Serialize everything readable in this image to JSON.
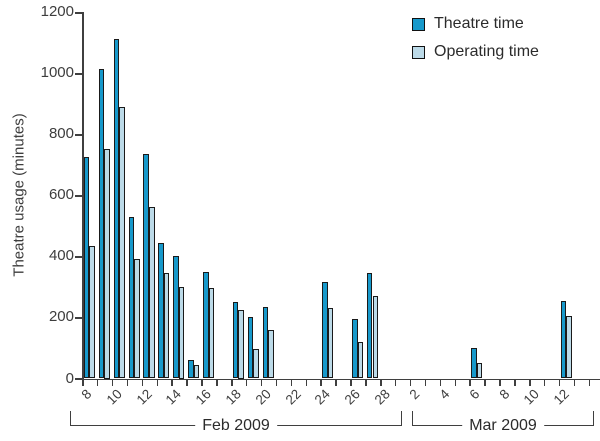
{
  "chart_data": {
    "type": "bar",
    "title": "",
    "ylabel": "Theatre usage (minutes)",
    "ylim": [
      0,
      1200
    ],
    "yticks": [
      0,
      200,
      400,
      600,
      800,
      1000,
      1200
    ],
    "grid": false,
    "legend_position": "top-right",
    "series_names": [
      "Theatre time",
      "Operating time"
    ],
    "colors": {
      "theatre_time": "#1799CB",
      "operating_time": "#BCDAE8",
      "axis": "#3F3F3F",
      "text": "#3D3D3D",
      "bar_border": "#1A1A1A"
    },
    "sections": [
      {
        "label": "Feb 2009",
        "first_day": 8,
        "last_day": 28,
        "tick_labels": [
          8,
          10,
          12,
          14,
          16,
          18,
          20,
          22,
          24,
          26,
          28
        ]
      },
      {
        "label": "Mar 2009",
        "first_day": 1,
        "last_day": 13,
        "tick_labels": [
          2,
          4,
          6,
          8,
          10,
          12
        ]
      }
    ],
    "data": [
      {
        "month": "Feb",
        "day": 8,
        "theatre_time": 725,
        "operating_time": 435
      },
      {
        "month": "Feb",
        "day": 9,
        "theatre_time": 1015,
        "operating_time": 750
      },
      {
        "month": "Feb",
        "day": 10,
        "theatre_time": 1110,
        "operating_time": 890
      },
      {
        "month": "Feb",
        "day": 11,
        "theatre_time": 530,
        "operating_time": 390
      },
      {
        "month": "Feb",
        "day": 12,
        "theatre_time": 735,
        "operating_time": 560
      },
      {
        "month": "Feb",
        "day": 13,
        "theatre_time": 445,
        "operating_time": 345
      },
      {
        "month": "Feb",
        "day": 14,
        "theatre_time": 400,
        "operating_time": 300
      },
      {
        "month": "Feb",
        "day": 15,
        "theatre_time": 60,
        "operating_time": 45
      },
      {
        "month": "Feb",
        "day": 16,
        "theatre_time": 350,
        "operating_time": 295
      },
      {
        "month": "Feb",
        "day": 18,
        "theatre_time": 250,
        "operating_time": 225
      },
      {
        "month": "Feb",
        "day": 19,
        "theatre_time": 200,
        "operating_time": 95
      },
      {
        "month": "Feb",
        "day": 20,
        "theatre_time": 235,
        "operating_time": 160
      },
      {
        "month": "Feb",
        "day": 24,
        "theatre_time": 315,
        "operating_time": 230
      },
      {
        "month": "Feb",
        "day": 26,
        "theatre_time": 195,
        "operating_time": 120
      },
      {
        "month": "Feb",
        "day": 27,
        "theatre_time": 345,
        "operating_time": 270
      },
      {
        "month": "Mar",
        "day": 6,
        "theatre_time": 100,
        "operating_time": 50
      },
      {
        "month": "Mar",
        "day": 12,
        "theatre_time": 255,
        "operating_time": 205
      }
    ]
  }
}
